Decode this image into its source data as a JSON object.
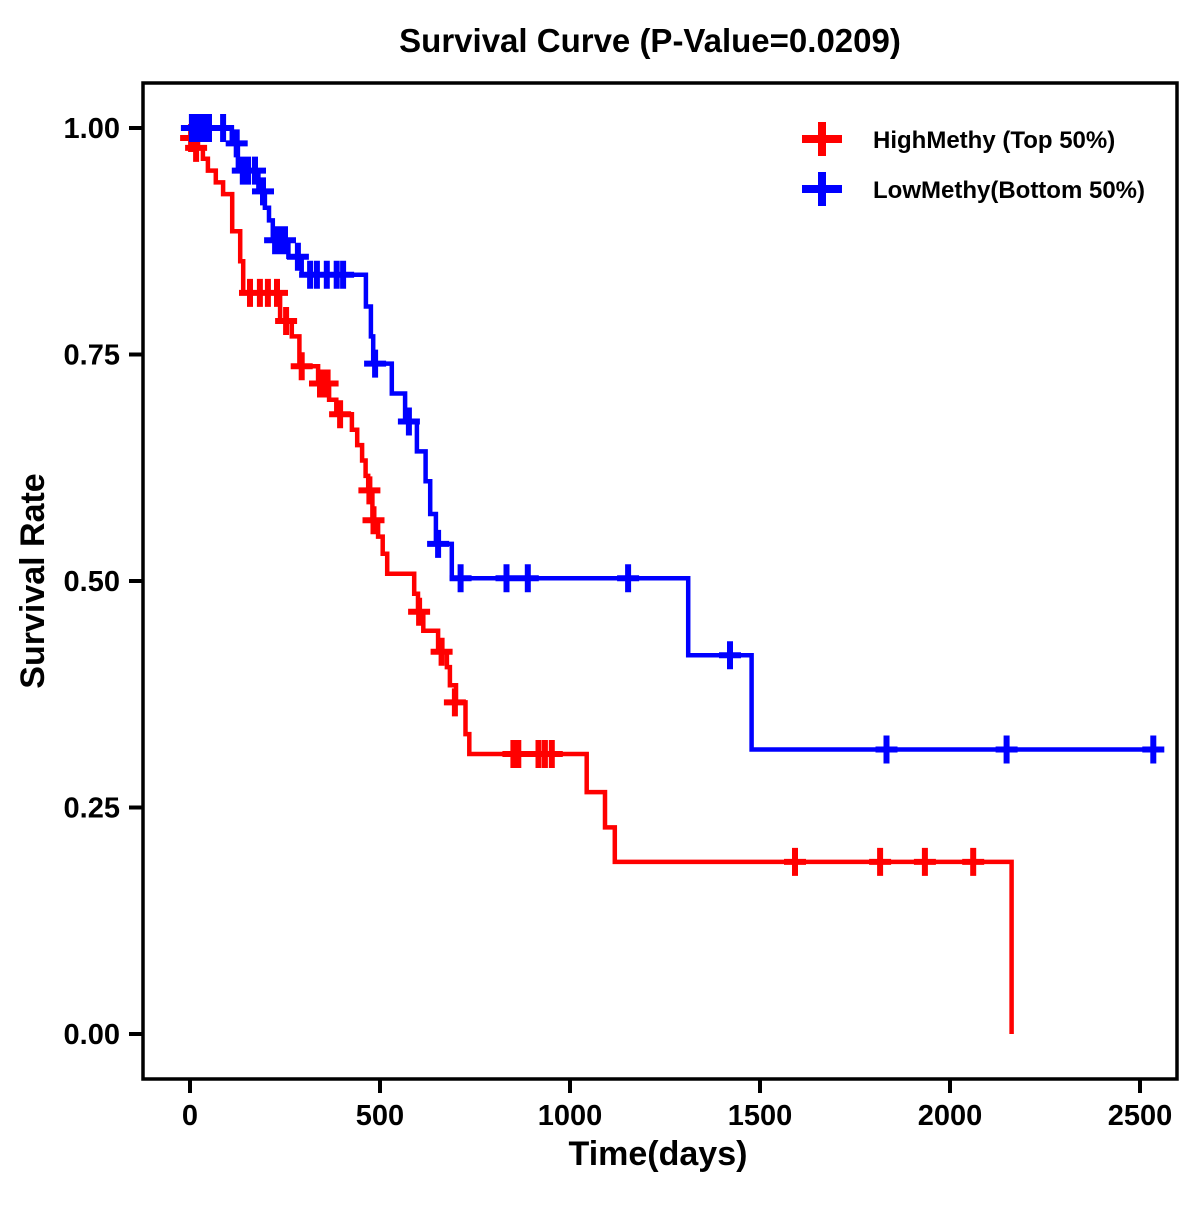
{
  "title": "Survival Curve (P-Value=0.0209)",
  "p_value": "0.0209",
  "x_axis": {
    "label": "Time(days)",
    "ticks": [
      0,
      500,
      1000,
      1500,
      2000,
      2500
    ]
  },
  "y_axis": {
    "label": "Survival Rate",
    "ticks": [
      1.0,
      0.75,
      0.5,
      0.25,
      0.0
    ]
  },
  "legend": {
    "items": [
      {
        "label": "HighMethy (Top 50%)",
        "color": "#FF0000"
      },
      {
        "label": "LowMethy(Bottom 50%)",
        "color": "#0000FF"
      }
    ]
  },
  "chart_data": {
    "type": "line",
    "subtype": "kaplan-meier-step",
    "title": "Survival Curve (P-Value=0.0209)",
    "xlabel": "Time(days)",
    "ylabel": "Survival Rate",
    "xlim": [
      -124,
      2597
    ],
    "ylim": [
      -0.05,
      1.05
    ],
    "x_ticks": [
      0,
      500,
      1000,
      1500,
      2000,
      2500
    ],
    "y_ticks": [
      1.0,
      0.75,
      0.5,
      0.25,
      0.0
    ],
    "grid": false,
    "legend_position": "upper right",
    "series": [
      {
        "name": "HighMethy (Top 50%)",
        "color": "#FF0000",
        "start": [
          0,
          1.0
        ],
        "end_day": 2162,
        "steps": [
          [
            10,
            0.989
          ],
          [
            21,
            0.978
          ],
          [
            34,
            0.966
          ],
          [
            47,
            0.953
          ],
          [
            68,
            0.94
          ],
          [
            87,
            0.927
          ],
          [
            111,
            0.886
          ],
          [
            132,
            0.853
          ],
          [
            140,
            0.818
          ],
          [
            237,
            0.787
          ],
          [
            268,
            0.77
          ],
          [
            288,
            0.737
          ],
          [
            337,
            0.718
          ],
          [
            366,
            0.7
          ],
          [
            385,
            0.684
          ],
          [
            426,
            0.667
          ],
          [
            440,
            0.65
          ],
          [
            453,
            0.633
          ],
          [
            462,
            0.616
          ],
          [
            469,
            0.6
          ],
          [
            480,
            0.567
          ],
          [
            495,
            0.549
          ],
          [
            507,
            0.53
          ],
          [
            519,
            0.508
          ],
          [
            590,
            0.486
          ],
          [
            600,
            0.466
          ],
          [
            614,
            0.445
          ],
          [
            653,
            0.422
          ],
          [
            676,
            0.405
          ],
          [
            684,
            0.385
          ],
          [
            700,
            0.366
          ],
          [
            725,
            0.331
          ],
          [
            735,
            0.309
          ],
          [
            1044,
            0.267
          ],
          [
            1092,
            0.228
          ],
          [
            1118,
            0.19
          ],
          [
            2162,
            0.0
          ]
        ],
        "censors": [
          [
            3,
            0.989
          ],
          [
            16,
            0.978
          ],
          [
            158,
            0.818
          ],
          [
            184,
            0.818
          ],
          [
            205,
            0.818
          ],
          [
            229,
            0.818
          ],
          [
            253,
            0.787
          ],
          [
            294,
            0.737
          ],
          [
            342,
            0.718
          ],
          [
            352,
            0.718
          ],
          [
            362,
            0.718
          ],
          [
            395,
            0.684
          ],
          [
            472,
            0.6
          ],
          [
            483,
            0.567
          ],
          [
            603,
            0.466
          ],
          [
            662,
            0.422
          ],
          [
            697,
            0.366
          ],
          [
            851,
            0.309
          ],
          [
            864,
            0.309
          ],
          [
            917,
            0.309
          ],
          [
            934,
            0.309
          ],
          [
            952,
            0.309
          ],
          [
            1592,
            0.19
          ],
          [
            1816,
            0.19
          ],
          [
            1934,
            0.19
          ],
          [
            2061,
            0.19
          ]
        ]
      },
      {
        "name": "LowMethy(Bottom 50%)",
        "color": "#0000FF",
        "start": [
          0,
          1.0
        ],
        "end_day": 2560,
        "steps": [
          [
            110,
            0.983
          ],
          [
            126,
            0.953
          ],
          [
            180,
            0.93
          ],
          [
            197,
            0.912
          ],
          [
            208,
            0.898
          ],
          [
            218,
            0.876
          ],
          [
            259,
            0.858
          ],
          [
            294,
            0.838
          ],
          [
            463,
            0.803
          ],
          [
            476,
            0.77
          ],
          [
            482,
            0.74
          ],
          [
            531,
            0.707
          ],
          [
            566,
            0.676
          ],
          [
            597,
            0.643
          ],
          [
            620,
            0.61
          ],
          [
            632,
            0.574
          ],
          [
            647,
            0.541
          ],
          [
            689,
            0.503
          ],
          [
            1311,
            0.418
          ],
          [
            1478,
            0.314
          ]
        ],
        "censors": [
          [
            5,
            1.0
          ],
          [
            15,
            1.0
          ],
          [
            25,
            1.0
          ],
          [
            35,
            1.0
          ],
          [
            50,
            1.0
          ],
          [
            87,
            1.0
          ],
          [
            123,
            0.983
          ],
          [
            139,
            0.953
          ],
          [
            153,
            0.953
          ],
          [
            171,
            0.953
          ],
          [
            192,
            0.93
          ],
          [
            224,
            0.876
          ],
          [
            236,
            0.876
          ],
          [
            250,
            0.876
          ],
          [
            284,
            0.858
          ],
          [
            316,
            0.838
          ],
          [
            334,
            0.838
          ],
          [
            360,
            0.838
          ],
          [
            386,
            0.838
          ],
          [
            403,
            0.838
          ],
          [
            487,
            0.74
          ],
          [
            576,
            0.676
          ],
          [
            653,
            0.541
          ],
          [
            712,
            0.503
          ],
          [
            833,
            0.503
          ],
          [
            889,
            0.503
          ],
          [
            1153,
            0.503
          ],
          [
            1421,
            0.418
          ],
          [
            1833,
            0.314
          ],
          [
            2149,
            0.314
          ],
          [
            2535,
            0.314
          ]
        ]
      }
    ]
  }
}
